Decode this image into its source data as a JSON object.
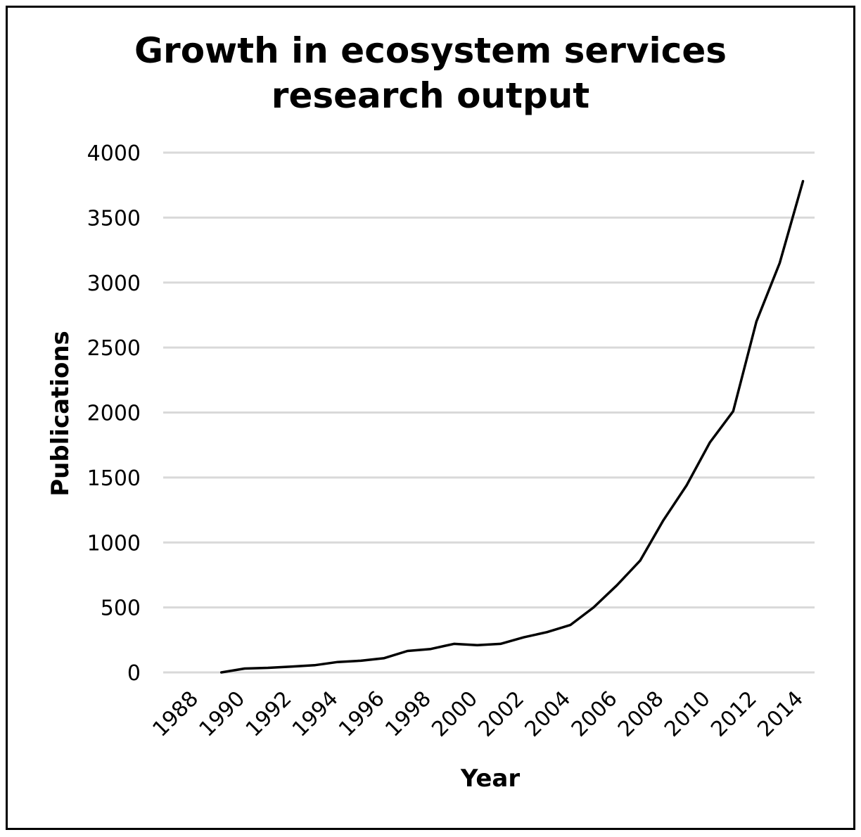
{
  "chart_data": {
    "type": "line",
    "title_lines": [
      "Growth in ecosystem services",
      "research output"
    ],
    "xlabel": "Year",
    "ylabel": "Publications",
    "ylim": [
      0,
      4000
    ],
    "y_ticks": [
      0,
      500,
      1000,
      1500,
      2000,
      2500,
      3000,
      3500,
      4000
    ],
    "x_ticks": [
      "1988",
      "1990",
      "1992",
      "1994",
      "1996",
      "1998",
      "2000",
      "2002",
      "2004",
      "2006",
      "2008",
      "2010",
      "2012",
      "2014"
    ],
    "x_categories": [
      1988,
      1989,
      1990,
      1991,
      1992,
      1993,
      1994,
      1995,
      1996,
      1997,
      1998,
      1999,
      2000,
      2001,
      2002,
      2003,
      2004,
      2005,
      2006,
      2007,
      2008,
      2009,
      2010,
      2011,
      2012,
      2013,
      2014,
      2015
    ],
    "series": [
      {
        "name": "Publications",
        "color": "#000000",
        "points": [
          [
            1990,
            0
          ],
          [
            1991,
            30
          ],
          [
            1992,
            35
          ],
          [
            1993,
            45
          ],
          [
            1994,
            55
          ],
          [
            1995,
            80
          ],
          [
            1996,
            90
          ],
          [
            1997,
            110
          ],
          [
            1998,
            165
          ],
          [
            1999,
            180
          ],
          [
            2000,
            220
          ],
          [
            2001,
            210
          ],
          [
            2002,
            220
          ],
          [
            2003,
            270
          ],
          [
            2004,
            310
          ],
          [
            2005,
            365
          ],
          [
            2006,
            500
          ],
          [
            2007,
            670
          ],
          [
            2008,
            860
          ],
          [
            2009,
            1170
          ],
          [
            2010,
            1440
          ],
          [
            2011,
            1770
          ],
          [
            2012,
            2010
          ],
          [
            2013,
            2700
          ],
          [
            2014,
            3150
          ],
          [
            2015,
            3780
          ]
        ]
      }
    ],
    "gridlines": true,
    "gridline_color": "#d9d9d9"
  }
}
